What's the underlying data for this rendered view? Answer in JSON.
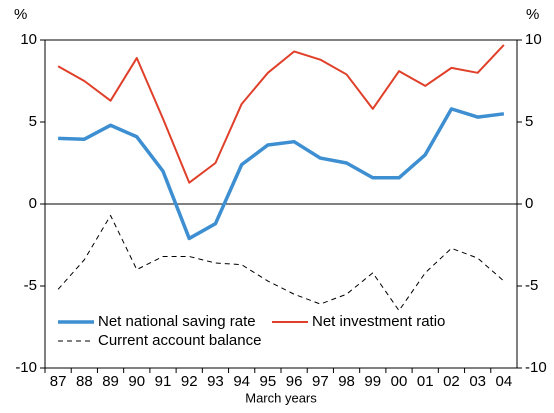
{
  "chart_data": {
    "type": "line",
    "y_label_left": "%",
    "y_label_right": "%",
    "x_label": "March years",
    "categories": [
      "87",
      "88",
      "89",
      "90",
      "91",
      "92",
      "93",
      "94",
      "95",
      "96",
      "97",
      "98",
      "99",
      "00",
      "01",
      "02",
      "03",
      "04"
    ],
    "series": [
      {
        "name": "Net national saving rate",
        "color": "#3d8fd1",
        "dash": "solid",
        "width": 3.5,
        "values": [
          4.0,
          3.95,
          4.8,
          4.1,
          2.0,
          -2.1,
          -1.2,
          2.4,
          3.6,
          3.8,
          2.8,
          2.5,
          1.6,
          1.6,
          3.0,
          5.8,
          5.3,
          5.5
        ]
      },
      {
        "name": "Net investment ratio",
        "color": "#e0402a",
        "dash": "solid",
        "width": 2,
        "values": [
          8.4,
          7.5,
          6.3,
          8.9,
          5.2,
          1.3,
          2.5,
          6.1,
          8.0,
          9.3,
          8.8,
          7.9,
          5.8,
          8.1,
          7.2,
          8.3,
          8.0,
          9.7
        ]
      },
      {
        "name": "Current account balance",
        "color": "#000000",
        "dash": "dashed",
        "width": 1,
        "values": [
          -5.2,
          -3.4,
          -0.7,
          -4.0,
          -3.2,
          -3.2,
          -3.6,
          -3.7,
          -4.7,
          -5.5,
          -6.1,
          -5.5,
          -4.2,
          -6.5,
          -4.2,
          -2.7,
          -3.3,
          -4.7
        ]
      }
    ],
    "ylim": [
      -10,
      10
    ],
    "yticks": [
      -10,
      -5,
      0,
      5,
      10
    ],
    "grid": false
  }
}
